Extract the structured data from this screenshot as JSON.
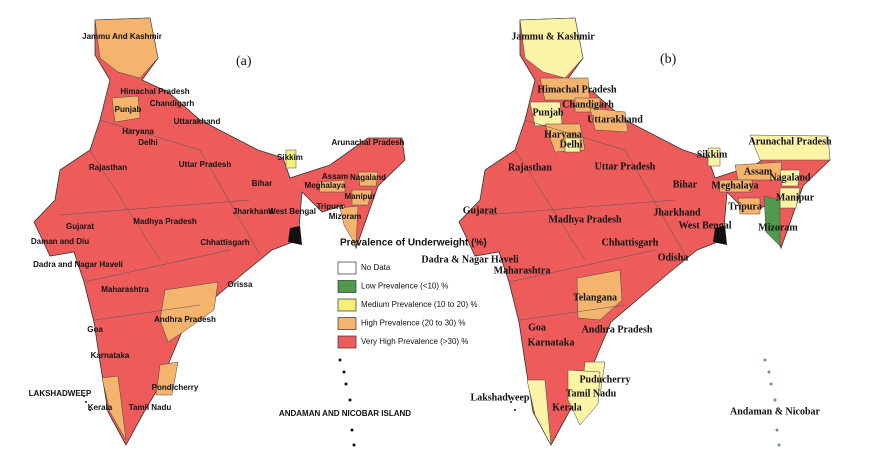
{
  "panels": [
    {
      "label": "(a)",
      "states": [
        {
          "name": "Jammu And Kashmir",
          "color": "#f5b46e"
        },
        {
          "name": "Himachal Pradesh",
          "color": "#ee5b5b"
        },
        {
          "name": "Punjab",
          "color": "#f5b46e"
        },
        {
          "name": "Chandigarh",
          "color": "#ee5b5b"
        },
        {
          "name": "Haryana",
          "color": "#ee5b5b"
        },
        {
          "name": "Uttarakhand",
          "color": "#ee5b5b"
        },
        {
          "name": "Delhi",
          "color": "#ee5b5b"
        },
        {
          "name": "Rajasthan",
          "color": "#ee5b5b"
        },
        {
          "name": "Uttar Pradesh",
          "color": "#ee5b5b"
        },
        {
          "name": "Sikkim",
          "color": "#f5f07a"
        },
        {
          "name": "Arunachal Pradesh",
          "color": "#ee5b5b"
        },
        {
          "name": "Assam",
          "color": "#ee5b5b"
        },
        {
          "name": "Nagaland",
          "color": "#f5b46e"
        },
        {
          "name": "Meghalaya",
          "color": "#f5b46e"
        },
        {
          "name": "Manipur",
          "color": "#f5b46e"
        },
        {
          "name": "Bihar",
          "color": "#ee5b5b"
        },
        {
          "name": "Tripura",
          "color": "#ee5b5b"
        },
        {
          "name": "Mizoram",
          "color": "#f5b46e"
        },
        {
          "name": "Gujarat",
          "color": "#ee5b5b"
        },
        {
          "name": "Madhya Pradesh",
          "color": "#ee5b5b"
        },
        {
          "name": "Jharkhand",
          "color": "#ee5b5b"
        },
        {
          "name": "West Bengal",
          "color": "#ee5b5b"
        },
        {
          "name": "Daman and Diu",
          "color": "#ee5b5b"
        },
        {
          "name": "Dadra and Nagar Haveli",
          "color": "#ee5b5b"
        },
        {
          "name": "Chhattisgarh",
          "color": "#ee5b5b"
        },
        {
          "name": "Orissa",
          "color": "#ee5b5b"
        },
        {
          "name": "Maharashtra",
          "color": "#ee5b5b"
        },
        {
          "name": "Andhra Pradesh",
          "color": "#f5b46e"
        },
        {
          "name": "Goa",
          "color": "#ee5b5b"
        },
        {
          "name": "Karnataka",
          "color": "#ee5b5b"
        },
        {
          "name": "Pondicherry",
          "color": "#f5b46e"
        },
        {
          "name": "Kerala",
          "color": "#f5b46e"
        },
        {
          "name": "Tamil Nadu",
          "color": "#ee5b5b"
        },
        {
          "name": "LAKSHADWEEP",
          "color": "#ffffff"
        },
        {
          "name": "ANDAMAN AND NICOBAR ISLAND",
          "color": "#ffffff"
        }
      ]
    },
    {
      "label": "(b)",
      "states": [
        {
          "name": "Jammu & Kashmir",
          "color": "#fbf3a6"
        },
        {
          "name": "Himachal Pradesh",
          "color": "#f5b46e"
        },
        {
          "name": "Chandigarh",
          "color": "#f5b46e"
        },
        {
          "name": "Punjab",
          "color": "#fbf3a6"
        },
        {
          "name": "Uttarakhand",
          "color": "#f5b46e"
        },
        {
          "name": "Haryana",
          "color": "#f5b46e"
        },
        {
          "name": "Delhi",
          "color": "#fbf3a6"
        },
        {
          "name": "Rajasthan",
          "color": "#ee5b5b"
        },
        {
          "name": "Uttar Pradesh",
          "color": "#ee5b5b"
        },
        {
          "name": "Sikkim",
          "color": "#fbf3a6"
        },
        {
          "name": "Arunachal Pradesh",
          "color": "#fbf3a6"
        },
        {
          "name": "Bihar",
          "color": "#ee5b5b"
        },
        {
          "name": "Assam",
          "color": "#f5b46e"
        },
        {
          "name": "Meghalaya",
          "color": "#f5b46e"
        },
        {
          "name": "Nagaland",
          "color": "#fbf3a6"
        },
        {
          "name": "Manipur",
          "color": "#fbf3a6"
        },
        {
          "name": "Tripura",
          "color": "#f5b46e"
        },
        {
          "name": "Mizoram",
          "color": "#4f9a4f"
        },
        {
          "name": "Gujarat",
          "color": "#ee5b5b"
        },
        {
          "name": "Madhya Pradesh",
          "color": "#ee5b5b"
        },
        {
          "name": "Jharkhand",
          "color": "#ee5b5b"
        },
        {
          "name": "West Bengal",
          "color": "#ee5b5b"
        },
        {
          "name": "Chhattisgarh",
          "color": "#ee5b5b"
        },
        {
          "name": "Dadra & Nagar Haveli",
          "color": "#ee5b5b"
        },
        {
          "name": "Maharashtra",
          "color": "#ee5b5b"
        },
        {
          "name": "Odisha",
          "color": "#ee5b5b"
        },
        {
          "name": "Telangana",
          "color": "#f5b46e"
        },
        {
          "name": "Goa",
          "color": "#ee5b5b"
        },
        {
          "name": "Andhra Pradesh",
          "color": "#ee5b5b"
        },
        {
          "name": "Karnataka",
          "color": "#ee5b5b"
        },
        {
          "name": "Puducherry",
          "color": "#fbf3a6"
        },
        {
          "name": "Lakshadweep",
          "color": "#ffffff"
        },
        {
          "name": "Tamil Nadu",
          "color": "#fbf3a6"
        },
        {
          "name": "Kerala",
          "color": "#fbf3a6"
        },
        {
          "name": "Andaman & Nicobar",
          "color": "#ffffff"
        }
      ]
    }
  ],
  "legend": {
    "title": "Prevalence of Underweight (%)",
    "items": [
      {
        "label": "No Data",
        "color": "#ffffff"
      },
      {
        "label": "Low Prevalence (<10) %",
        "color": "#4f9a4f"
      },
      {
        "label": "Medium Prevalence (10 to 20) %",
        "color": "#f5f07a"
      },
      {
        "label": "High Prevalence (20 to 30) %",
        "color": "#f5b46e"
      },
      {
        "label": "Very High Prevalence (>30) %",
        "color": "#ee5b5b"
      }
    ]
  }
}
